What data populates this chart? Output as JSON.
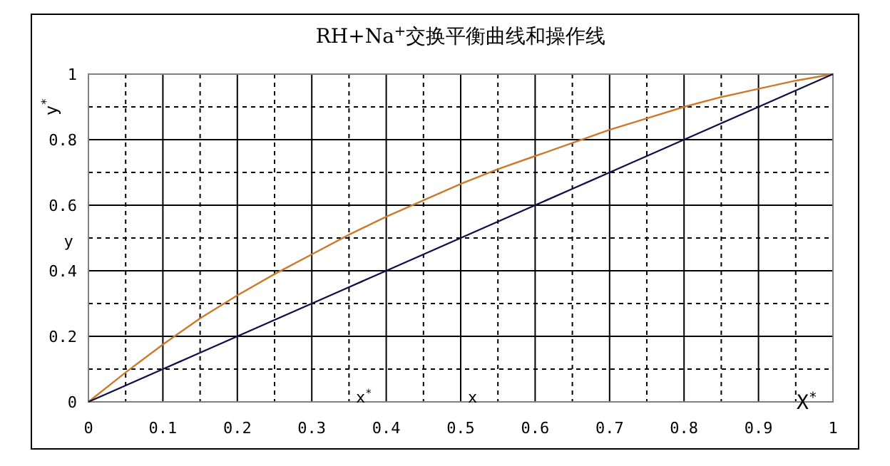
{
  "chart_data": {
    "type": "line",
    "title": "RH+Na$^{+}$交换平衡曲线和操作线",
    "ylabel": "y$^{*}$",
    "x": [
      0,
      0.05,
      0.1,
      0.15,
      0.2,
      0.25,
      0.3,
      0.35,
      0.4,
      0.45,
      0.5,
      0.55,
      0.6,
      0.65,
      0.7,
      0.75,
      0.8,
      0.85,
      0.9,
      0.95,
      1
    ],
    "series": [
      {
        "color": "#cc7a2a",
        "values": [
          0,
          0.09,
          0.175,
          0.255,
          0.325,
          0.39,
          0.45,
          0.51,
          0.565,
          0.615,
          0.665,
          0.71,
          0.75,
          0.79,
          0.83,
          0.865,
          0.9,
          0.93,
          0.955,
          0.98,
          1
        ]
      },
      {
        "color": "#10104a",
        "values": [
          0,
          0.05,
          0.1,
          0.15,
          0.2,
          0.25,
          0.3,
          0.35,
          0.4,
          0.45,
          0.5,
          0.55,
          0.6,
          0.65,
          0.7,
          0.75,
          0.8,
          0.85,
          0.9,
          0.95,
          1
        ]
      }
    ],
    "annotations": [
      "y",
      "x$^{*}$",
      "x",
      "X$^{*}$"
    ],
    "xlim": [
      0,
      1
    ],
    "ylim": [
      0,
      1
    ],
    "xticks": [
      0,
      0.1,
      0.2,
      0.3,
      0.4,
      0.5,
      0.6,
      0.7,
      0.8,
      0.9,
      1
    ],
    "yticks": [
      0,
      0.2,
      0.4,
      0.6,
      0.8,
      1
    ],
    "grid": true,
    "marker": "none",
    "line_style": "solid"
  }
}
